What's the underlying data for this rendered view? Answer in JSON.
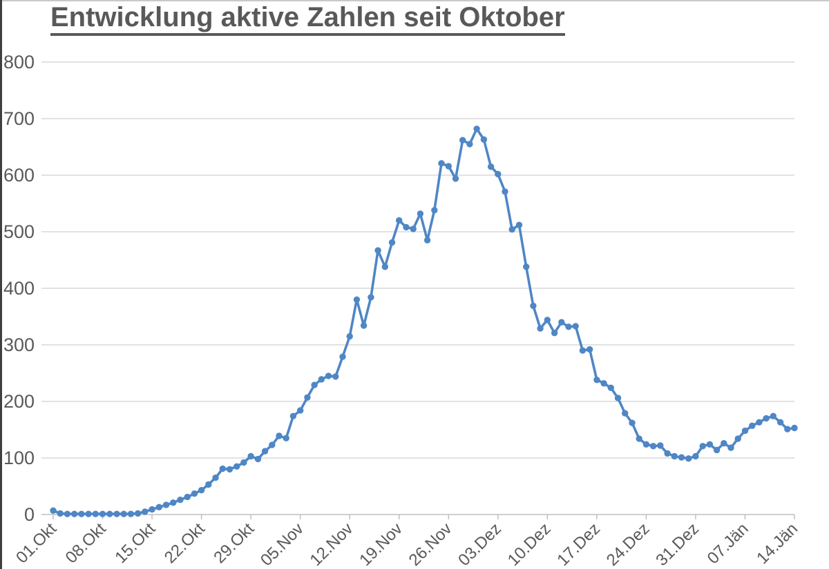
{
  "title": "Entwicklung aktive Zahlen seit Oktober",
  "colors": {
    "series_line": "#4f86c6",
    "text": "#595959",
    "gridline": "#d9d9d9",
    "axis": "#bfbfbf",
    "frame_left": "#3f3f3f",
    "frame_top": "#c9c9c9"
  },
  "chart_data": {
    "type": "line",
    "title": "Entwicklung aktive Zahlen seit Oktober",
    "series_name": "aktive Zahlen",
    "legend": "none",
    "grid": "horizontal",
    "marker": "circle",
    "ylim": [
      0,
      800
    ],
    "y_tick_labels": [
      "0",
      "100",
      "200",
      "300",
      "400",
      "500",
      "600",
      "700",
      "800"
    ],
    "x_tick_labels": [
      "01.Okt",
      "08.Okt",
      "15.Okt",
      "22.Okt",
      "29.Okt",
      "05.Nov",
      "12.Nov",
      "19.Nov",
      "26.Nov",
      "03.Dez",
      "10.Dez",
      "17.Dez",
      "24.Dez",
      "31.Dez",
      "07.Jän",
      "14.Jän"
    ],
    "x_frequency": "daily",
    "x_range": "01.Okt - 14.Jän",
    "values": [
      7,
      2,
      1,
      1,
      1,
      1,
      1,
      1,
      1,
      1,
      1,
      1,
      2,
      5,
      9,
      13,
      17,
      21,
      26,
      31,
      37,
      43,
      53,
      65,
      81,
      80,
      85,
      92,
      103,
      98,
      112,
      123,
      139,
      135,
      174,
      184,
      207,
      229,
      239,
      245,
      244,
      279,
      315,
      380,
      334,
      384,
      467,
      438,
      481,
      520,
      508,
      505,
      532,
      485,
      538,
      621,
      616,
      594,
      662,
      655,
      682,
      663,
      615,
      602,
      571,
      504,
      512,
      438,
      369,
      329,
      344,
      321,
      340,
      332,
      333,
      290,
      292,
      238,
      232,
      224,
      206,
      179,
      162,
      134,
      124,
      121,
      122,
      108,
      103,
      101,
      99,
      103,
      121,
      124,
      114,
      126,
      118,
      134,
      148,
      157,
      163,
      170,
      174,
      163,
      151,
      153
    ]
  }
}
